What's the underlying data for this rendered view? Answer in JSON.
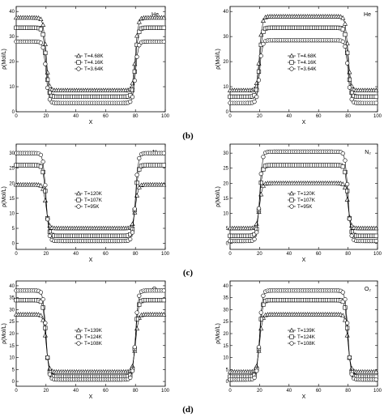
{
  "figure": {
    "panel_labels": [
      "(b)",
      "(c)",
      "(d)"
    ]
  },
  "chart_data": [
    {
      "type": "line",
      "title": "He",
      "xlabel": "X",
      "ylabel": "ρ(Mol/L)",
      "xlim": [
        0,
        100
      ],
      "ylim": [
        0,
        42
      ],
      "xticks": [
        0,
        20,
        40,
        60,
        80,
        100
      ],
      "yticks": [
        0,
        10,
        20,
        30,
        40
      ],
      "legend": "center",
      "grid": false,
      "shape": "well",
      "x_left": 20,
      "x_right": 80,
      "series": [
        {
          "name": "T=4.68K",
          "marker": "triangle",
          "low": 8.5,
          "high": 37.5
        },
        {
          "name": "T=4.16K",
          "marker": "square",
          "low": 6.0,
          "high": 33.5
        },
        {
          "name": "T=3.64K",
          "marker": "circle",
          "low": 3.5,
          "high": 28.0
        }
      ]
    },
    {
      "type": "line",
      "title": "He",
      "xlabel": "X",
      "ylabel": "ρ(Mol/L)",
      "xlim": [
        0,
        100
      ],
      "ylim": [
        0,
        42
      ],
      "xticks": [
        0,
        20,
        40,
        60,
        80,
        100
      ],
      "yticks": [
        0,
        10,
        20,
        30,
        40
      ],
      "legend": "center",
      "grid": false,
      "shape": "bump",
      "x_left": 20,
      "x_right": 80,
      "series": [
        {
          "name": "T=4.68K",
          "marker": "triangle",
          "low": 8.5,
          "high": 38.0
        },
        {
          "name": "T=4.16K",
          "marker": "square",
          "low": 6.0,
          "high": 33.5
        },
        {
          "name": "T=3.64K",
          "marker": "circle",
          "low": 3.5,
          "high": 28.5
        }
      ]
    },
    {
      "type": "line",
      "title": "N₂",
      "xlabel": "X",
      "ylabel": "ρ(Mol/L)",
      "xlim": [
        0,
        100
      ],
      "ylim": [
        -2,
        33
      ],
      "xticks": [
        0,
        20,
        40,
        60,
        80,
        100
      ],
      "yticks": [
        0,
        5,
        10,
        15,
        20,
        25,
        30
      ],
      "legend": "center",
      "grid": false,
      "shape": "well",
      "x_left": 20,
      "x_right": 80,
      "series": [
        {
          "name": "T=120K",
          "marker": "triangle",
          "low": 5.0,
          "high": 19.5
        },
        {
          "name": "T=107K",
          "marker": "square",
          "low": 2.5,
          "high": 26.0
        },
        {
          "name": "T=95K",
          "marker": "circle",
          "low": 0.8,
          "high": 30.0
        }
      ]
    },
    {
      "type": "line",
      "title": "N₂",
      "xlabel": "X",
      "ylabel": "ρ(Mol/L)",
      "xlim": [
        0,
        100
      ],
      "ylim": [
        -2,
        33
      ],
      "xticks": [
        0,
        20,
        40,
        60,
        80,
        100
      ],
      "yticks": [
        0,
        5,
        10,
        15,
        20,
        25,
        30
      ],
      "legend": "center",
      "grid": false,
      "shape": "bump",
      "x_left": 20,
      "x_right": 80,
      "series": [
        {
          "name": "T=120K",
          "marker": "triangle",
          "low": 5.0,
          "high": 20.0
        },
        {
          "name": "T=107K",
          "marker": "square",
          "low": 2.5,
          "high": 26.0
        },
        {
          "name": "T=95K",
          "marker": "circle",
          "low": 0.8,
          "high": 30.5
        }
      ]
    },
    {
      "type": "line",
      "title": "O₂",
      "xlabel": "X",
      "ylabel": "ρ(Mol/L)",
      "xlim": [
        0,
        100
      ],
      "ylim": [
        -2,
        42
      ],
      "xticks": [
        0,
        20,
        40,
        60,
        80,
        100
      ],
      "yticks": [
        0,
        5,
        10,
        15,
        20,
        25,
        30,
        35,
        40
      ],
      "legend": "center",
      "grid": false,
      "shape": "well",
      "x_left": 20,
      "x_right": 80,
      "series": [
        {
          "name": "T=139K",
          "marker": "triangle",
          "low": 4.0,
          "high": 28.0
        },
        {
          "name": "T=124K",
          "marker": "square",
          "low": 2.0,
          "high": 34.0
        },
        {
          "name": "T=108K",
          "marker": "circle",
          "low": 0.8,
          "high": 38.0
        }
      ]
    },
    {
      "type": "line",
      "title": "O₂",
      "xlabel": "X",
      "ylabel": "ρ(Mol/L)",
      "xlim": [
        0,
        100
      ],
      "ylim": [
        -2,
        42
      ],
      "xticks": [
        0,
        20,
        40,
        60,
        80,
        100
      ],
      "yticks": [
        0,
        5,
        10,
        15,
        20,
        25,
        30,
        35,
        40
      ],
      "legend": "center",
      "grid": false,
      "shape": "bump",
      "x_left": 20,
      "x_right": 80,
      "series": [
        {
          "name": "T=139K",
          "marker": "triangle",
          "low": 4.0,
          "high": 28.0
        },
        {
          "name": "T=124K",
          "marker": "square",
          "low": 2.0,
          "high": 34.0
        },
        {
          "name": "T=108K",
          "marker": "circle",
          "low": 0.8,
          "high": 38.0
        }
      ]
    }
  ]
}
